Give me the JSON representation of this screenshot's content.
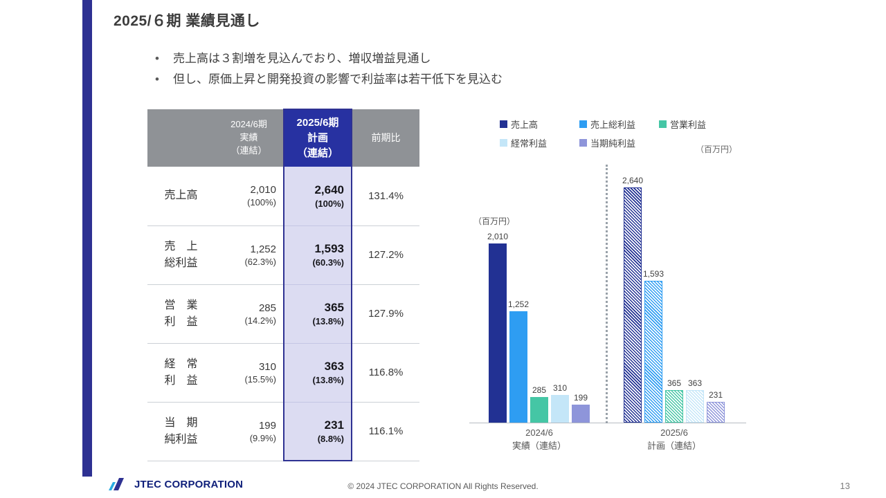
{
  "accent_color": "#2e3192",
  "title": "2025/６期 業績見通し",
  "bullets": [
    "売上高は３割増を見込んでおり、増収増益見通し",
    "但し、原価上昇と開発投資の影響で利益率は若干低下を見込む"
  ],
  "table": {
    "col_headers": [
      "",
      "2024/6期\n実績\n（連結）",
      "2025/6期\n計画\n（連結）",
      "前期比"
    ],
    "rows": [
      {
        "label": "売上高",
        "actual": "2,010",
        "actual_ratio": "(100%)",
        "plan": "2,640",
        "plan_ratio": "(100%)",
        "yoy": "131.4%"
      },
      {
        "label": "売　上\n総利益",
        "actual": "1,252",
        "actual_ratio": "(62.3%)",
        "plan": "1,593",
        "plan_ratio": "(60.3%)",
        "yoy": "127.2%"
      },
      {
        "label": "営　業\n利　益",
        "actual": "285",
        "actual_ratio": "(14.2%)",
        "plan": "365",
        "plan_ratio": "(13.8%)",
        "yoy": "127.9%"
      },
      {
        "label": "経　常\n利　益",
        "actual": "310",
        "actual_ratio": "(15.5%)",
        "plan": "363",
        "plan_ratio": "(13.8%)",
        "yoy": "116.8%"
      },
      {
        "label": "当　期\n純利益",
        "actual": "199",
        "actual_ratio": "(9.9%)",
        "plan": "231",
        "plan_ratio": "(8.8%)",
        "yoy": "116.1%"
      }
    ]
  },
  "chart_data": {
    "type": "bar",
    "unit_label": "（百万円）",
    "ylim": [
      0,
      2640
    ],
    "legend_position": "top",
    "series": [
      {
        "name": "売上高",
        "color": "#223193",
        "values": [
          2010,
          2640
        ]
      },
      {
        "name": "売上総利益",
        "color": "#2e9df2",
        "values": [
          1252,
          1593
        ]
      },
      {
        "name": "営業利益",
        "color": "#45c6a5",
        "values": [
          285,
          365
        ]
      },
      {
        "name": "経常利益",
        "color": "#c4e6f8",
        "values": [
          310,
          363
        ]
      },
      {
        "name": "当期純利益",
        "color": "#8e95da",
        "values": [
          199,
          231
        ]
      }
    ],
    "groups": [
      {
        "label": "2024/6",
        "sublabel": "実績（連結）",
        "pattern": "solid",
        "value_labels": [
          "2,010",
          "1,252",
          "285",
          "310",
          "199"
        ]
      },
      {
        "label": "2025/6",
        "sublabel": "計画（連結）",
        "pattern": "hatch",
        "value_labels": [
          "2,640",
          "1,593",
          "365",
          "363",
          "231"
        ]
      }
    ]
  },
  "footer": {
    "logo_text": "JTEC CORPORATION",
    "copyright": "© 2024 JTEC CORPORATION All Rights Reserved.",
    "page_number": "13"
  }
}
